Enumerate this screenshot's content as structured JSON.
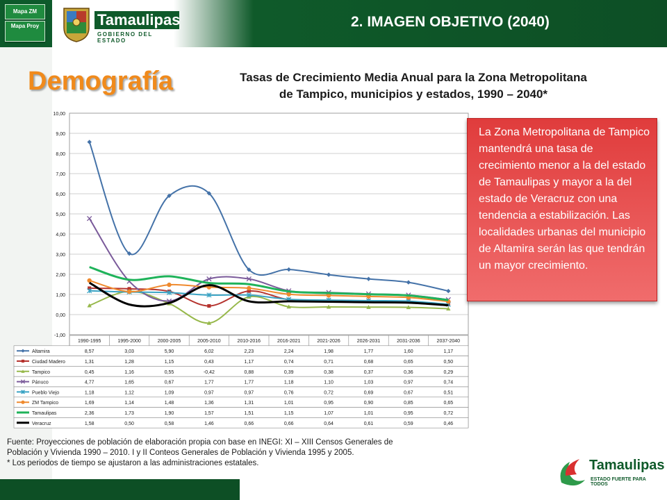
{
  "nav": {
    "buttons": [
      {
        "label": "Mapa ZM"
      },
      {
        "label": "Mapa Proy"
      }
    ]
  },
  "logo": {
    "name": "Tamaulipas",
    "subtitle": "GOBIERNO DEL ESTADO"
  },
  "header": {
    "title": "2. IMAGEN OBJETIVO (2040)"
  },
  "section_title": "Demografía",
  "chart_data": {
    "type": "line",
    "title_line1": "Tasas de Crecimiento Media Anual para la Zona Metropolitana",
    "title_line2": "de Tampico, municipios y estados, 1990 – 2040*",
    "categories": [
      "1990-1995",
      "1995-2000",
      "2000-2005",
      "2005-2010",
      "2010-2016",
      "2016-2021",
      "2021-2026",
      "2026-2031",
      "2031-2036",
      "2037-2040"
    ],
    "ylim": [
      -1,
      10
    ],
    "yticks": [
      "-1,00",
      "0,00",
      "1,00",
      "2,00",
      "3,00",
      "4,00",
      "5,00",
      "6,00",
      "7,00",
      "8,00",
      "9,00",
      "10,00"
    ],
    "grid": true,
    "series": [
      {
        "name": "Altamira",
        "color": "#4472a8",
        "marker": "diamond",
        "values": [
          8.57,
          3.03,
          5.9,
          6.02,
          2.23,
          2.24,
          1.98,
          1.77,
          1.6,
          1.17
        ],
        "labels": [
          "8,57",
          "3,03",
          "5,90",
          "6,02",
          "2,23",
          "2,24",
          "1,98",
          "1,77",
          "1,60",
          "1,17"
        ]
      },
      {
        "name": "Ciudad Madero",
        "color": "#b5332e",
        "marker": "square",
        "values": [
          1.31,
          1.28,
          1.15,
          0.43,
          1.17,
          0.74,
          0.71,
          0.68,
          0.65,
          0.5
        ],
        "labels": [
          "1,31",
          "1,28",
          "1,15",
          "0,43",
          "1,17",
          "0,74",
          "0,71",
          "0,68",
          "0,65",
          "0,50"
        ]
      },
      {
        "name": "Tampico",
        "color": "#97b84b",
        "marker": "triangle",
        "values": [
          0.45,
          1.16,
          0.55,
          -0.42,
          0.88,
          0.39,
          0.38,
          0.37,
          0.36,
          0.29
        ],
        "labels": [
          "0,45",
          "1,16",
          "0,55",
          "-0,42",
          "0,88",
          "0,39",
          "0,38",
          "0,37",
          "0,36",
          "0,29"
        ]
      },
      {
        "name": "Pánuco",
        "color": "#7a5a9a",
        "marker": "x",
        "values": [
          4.77,
          1.65,
          0.67,
          1.77,
          1.77,
          1.18,
          1.1,
          1.03,
          0.97,
          0.74
        ],
        "labels": [
          "4,77",
          "1,65",
          "0,67",
          "1,77",
          "1,77",
          "1,18",
          "1,10",
          "1,03",
          "0,97",
          "0,74"
        ]
      },
      {
        "name": "Pueblo Viejo",
        "color": "#3aa3c4",
        "marker": "star",
        "values": [
          1.18,
          1.12,
          1.09,
          0.97,
          0.97,
          0.76,
          0.72,
          0.69,
          0.67,
          0.51
        ],
        "labels": [
          "1,18",
          "1,12",
          "1,09",
          "0,97",
          "0,97",
          "0,76",
          "0,72",
          "0,69",
          "0,67",
          "0,51"
        ]
      },
      {
        "name": "ZM Tampico",
        "color": "#ef8a2e",
        "marker": "circle",
        "values": [
          1.69,
          1.14,
          1.48,
          1.36,
          1.31,
          1.01,
          0.95,
          0.9,
          0.85,
          0.65
        ],
        "labels": [
          "1,69",
          "1,14",
          "1,48",
          "1,36",
          "1,31",
          "1,01",
          "0,95",
          "0,90",
          "0,85",
          "0,65"
        ]
      },
      {
        "name": "Tamaulipas",
        "color": "#1fb35a",
        "marker": "none",
        "values": [
          2.36,
          1.73,
          1.9,
          1.57,
          1.51,
          1.15,
          1.07,
          1.01,
          0.95,
          0.72
        ],
        "labels": [
          "2,36",
          "1,73",
          "1,90",
          "1,57",
          "1,51",
          "1,15",
          "1,07",
          "1,01",
          "0,95",
          "0,72"
        ]
      },
      {
        "name": "Veracruz",
        "color": "#000000",
        "marker": "none",
        "values": [
          1.58,
          0.5,
          0.58,
          1.46,
          0.66,
          0.66,
          0.64,
          0.61,
          0.59,
          0.46
        ],
        "labels": [
          "1,58",
          "0,50",
          "0,58",
          "1,46",
          "0,66",
          "0,66",
          "0,64",
          "0,61",
          "0,59",
          "0,46"
        ]
      }
    ]
  },
  "callout": {
    "text": "La Zona Metropolitana de Tampico mantendrá una tasa de crecimiento menor a la del estado de Tamaulipas y mayor a la del estado de Veracruz con una tendencia a estabilización. Las localidades urbanas del municipio de Altamira serán las que tendrán un mayor crecimiento."
  },
  "source": {
    "line1": "Fuente: Proyecciones de población de elaboración propia con base en INEGI: XI – XIII Censos Generales  de",
    "line2": "Población y Vivienda 1990 – 2010. I y II Conteos Generales  de Población y Vivienda 1995 y 2005.",
    "line3": "* Los periodos de tiempo se ajustaron a las administraciones estatales."
  },
  "footer_logo": {
    "name": "Tamaulipas",
    "subtitle": "ESTADO FUERTE PARA TODOS"
  }
}
